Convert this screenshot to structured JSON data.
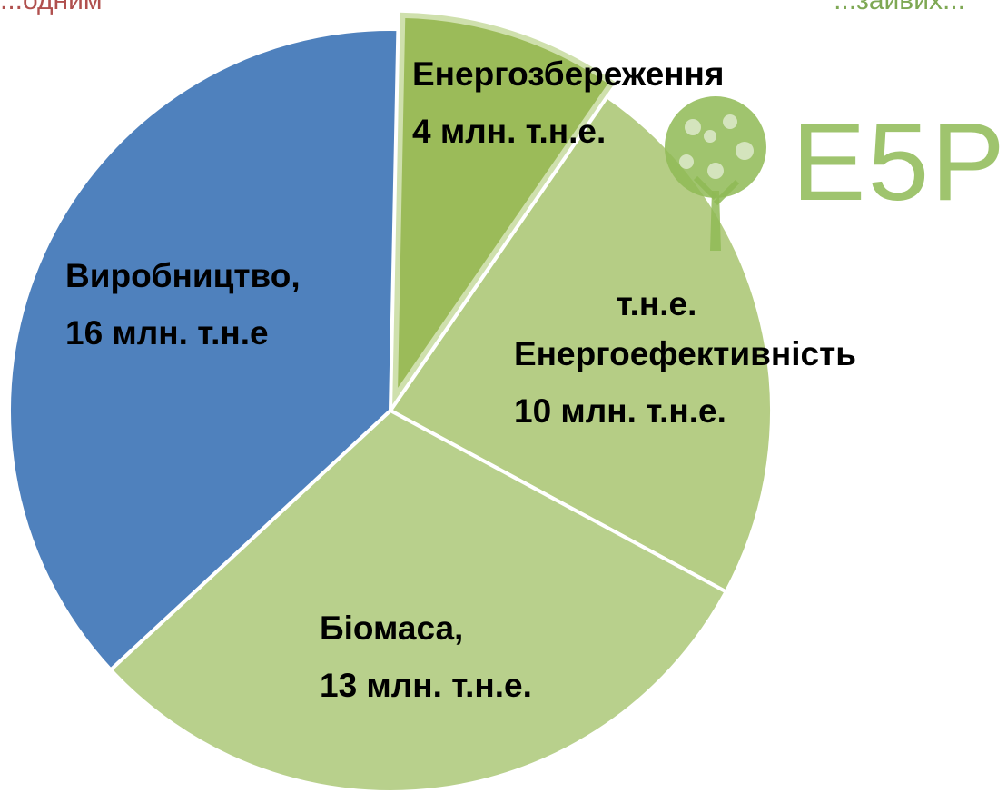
{
  "header": {
    "left_partial": "...одним",
    "right_partial": "...зайвих..."
  },
  "logo": {
    "text": "E5P",
    "icon": "tree-icon",
    "color": "#8fba55"
  },
  "chart_data": {
    "type": "pie",
    "title": "",
    "unit": "млн. т.н.е.",
    "slices": [
      {
        "label_line1": "Енергозбереження",
        "label_line2": "4 млн. т.н.е.",
        "value": 4,
        "color": "#9bbb59",
        "exploded": true
      },
      {
        "label_line1": "Енергоефективність",
        "label_line2": "10 млн. т.н.е.",
        "value": 10,
        "color": "#b5cd85",
        "exploded": false
      },
      {
        "label_line1": "Біомаса,",
        "label_line2": "13 млн. т.н.е.",
        "value": 13,
        "color": "#b8d08c",
        "exploded": false
      },
      {
        "label_line1": "Виробництво,",
        "label_line2": "16 млн. т.н.е",
        "value": 16,
        "color": "#4f81bd",
        "exploded": false
      }
    ],
    "partially_hidden_label": "т.н.е.",
    "legend": "none"
  }
}
